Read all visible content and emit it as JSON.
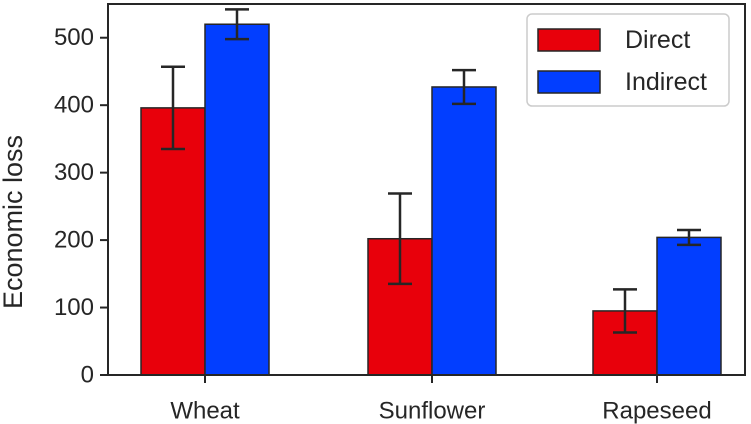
{
  "chart_data": {
    "type": "bar",
    "categories": [
      "Wheat",
      "Sunflower",
      "Rapeseed"
    ],
    "series": [
      {
        "name": "Direct",
        "color": "#e8000b",
        "values": [
          396,
          202,
          95
        ],
        "error": [
          61,
          67,
          32
        ]
      },
      {
        "name": "Indirect",
        "color": "#023eff",
        "values": [
          520,
          427,
          204
        ],
        "error": [
          22,
          25,
          11
        ]
      }
    ],
    "title": "",
    "xlabel": "",
    "ylabel": "Economic loss",
    "ylim": [
      0,
      550
    ],
    "yticks": [
      0,
      100,
      200,
      300,
      400,
      500
    ],
    "grid": false,
    "legend_position": "top-right"
  }
}
